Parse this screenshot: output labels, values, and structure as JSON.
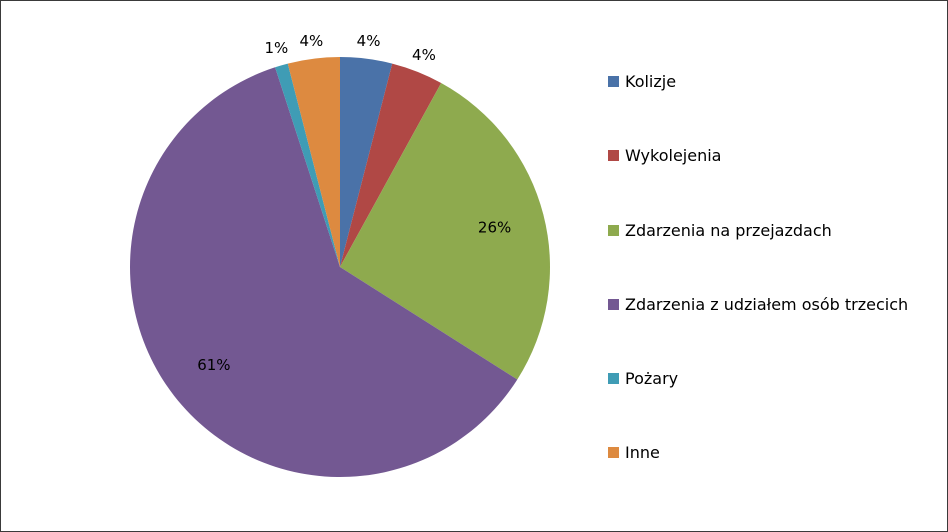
{
  "chart_data": {
    "type": "pie",
    "title": "",
    "legend_position": "right",
    "slices": [
      {
        "name": "Kolizje",
        "value": 4,
        "label": "4%",
        "color": "#4a72a8"
      },
      {
        "name": "Wykolejenia",
        "value": 4,
        "label": "4%",
        "color": "#b04845"
      },
      {
        "name": "Zdarzenia na przejazdach",
        "value": 26,
        "label": "26%",
        "color": "#8eaa4e"
      },
      {
        "name": "Zdarzenia z udziałem osób trzecich",
        "value": 61,
        "label": "61%",
        "color": "#735892"
      },
      {
        "name": "Pożary",
        "value": 1,
        "label": "1%",
        "color": "#3f9cb5"
      },
      {
        "name": "Inne",
        "value": 4,
        "label": "4%",
        "color": "#dd8a40"
      }
    ]
  }
}
